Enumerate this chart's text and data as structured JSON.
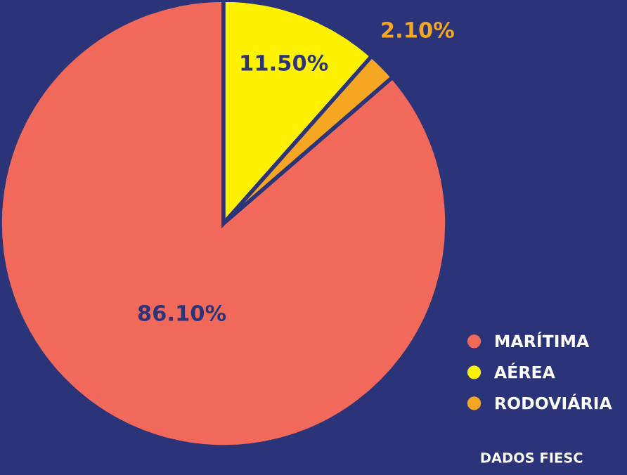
{
  "chart_data": {
    "type": "pie",
    "categories": [
      "MARÍTIMA",
      "AÉREA",
      "RODOVIÁRIA"
    ],
    "values": [
      86.1,
      11.5,
      2.1
    ],
    "value_labels": [
      "86.10%",
      "11.50%",
      "2.10%"
    ],
    "colors": [
      "#f0695a",
      "#fff200",
      "#f5a623"
    ],
    "legend": "bottom right",
    "annotations": [
      "DADOS FIESC"
    ]
  }
}
